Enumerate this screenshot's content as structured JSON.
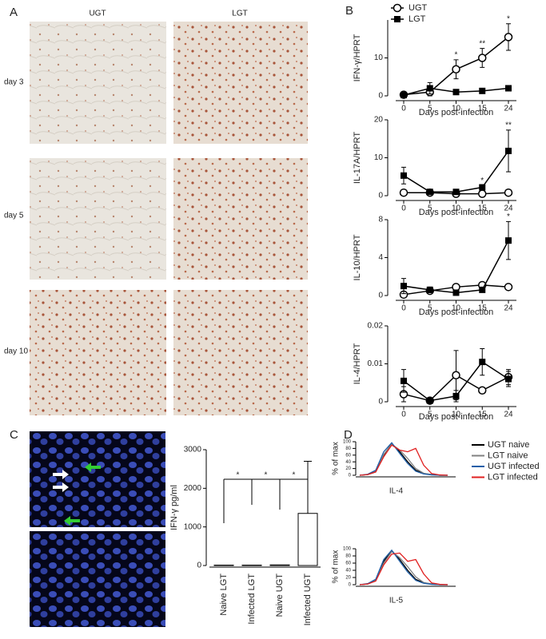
{
  "panels": {
    "a": "A",
    "b": "B",
    "c": "C",
    "d": "D"
  },
  "photo_grid": {
    "columns": [
      "UGT",
      "LGT"
    ],
    "rows": [
      "day 3",
      "day 5",
      "day 10"
    ]
  },
  "chart_data": [
    {
      "type": "line",
      "ylabel": "IFN-γ/HPRT",
      "xlabel": "Days post-infection",
      "categories": [
        "0",
        "5",
        "10",
        "15",
        "24"
      ],
      "ylim": [
        0,
        20
      ],
      "yticks": [
        0,
        10
      ],
      "legend": "upper left",
      "series": [
        {
          "name": "UGT",
          "color": "#000000",
          "marker": "circle",
          "values": [
            0.3,
            1,
            7,
            10,
            15.5
          ],
          "errors": [
            0.3,
            1,
            2.5,
            2.5,
            3.5
          ]
        },
        {
          "name": "LGT",
          "color": "#000000",
          "marker": "square",
          "values": [
            0.2,
            2,
            1,
            1.3,
            2
          ],
          "errors": [
            0.2,
            1.5,
            0.4,
            0.5,
            0.5
          ]
        }
      ],
      "annotations": [
        {
          "label": "*",
          "category": "10"
        },
        {
          "label": "**",
          "category": "15"
        },
        {
          "label": "*",
          "category": "24"
        }
      ]
    },
    {
      "type": "line",
      "ylabel": "IL-17A/HPRT",
      "xlabel": "Days post-infection",
      "categories": [
        "0",
        "5",
        "10",
        "15",
        "24"
      ],
      "ylim": [
        0,
        20
      ],
      "yticks": [
        0,
        10,
        20
      ],
      "series": [
        {
          "color": "#000000",
          "marker": "circle",
          "values": [
            0.8,
            0.8,
            0.5,
            0.5,
            0.8
          ],
          "errors": [
            0.3,
            0.3,
            0.2,
            0.2,
            0.3
          ]
        },
        {
          "color": "#000000",
          "marker": "square",
          "values": [
            5.3,
            1,
            1,
            2.2,
            11.8
          ],
          "errors": [
            2.2,
            0.5,
            0.4,
            0.5,
            5.5
          ]
        }
      ],
      "annotations": [
        {
          "label": "*",
          "category": "15"
        },
        {
          "label": "**",
          "category": "24"
        }
      ]
    },
    {
      "type": "line",
      "ylabel": "IL-10/HPRT",
      "xlabel": "Days post-infection",
      "categories": [
        "0",
        "5",
        "10",
        "15",
        "24"
      ],
      "ylim": [
        0,
        8
      ],
      "yticks": [
        0,
        4,
        8
      ],
      "series": [
        {
          "color": "#000000",
          "marker": "circle",
          "values": [
            0.1,
            0.5,
            0.9,
            1.1,
            0.9
          ],
          "errors": [
            0.1,
            0.2,
            0.2,
            0.2,
            0.2
          ]
        },
        {
          "color": "#000000",
          "marker": "square",
          "values": [
            1,
            0.6,
            0.3,
            0.6,
            5.8
          ],
          "errors": [
            0.8,
            0.3,
            0.2,
            0.2,
            2
          ]
        }
      ],
      "annotations": [
        {
          "label": "*",
          "category": "24"
        }
      ]
    },
    {
      "type": "line",
      "ylabel": "IL-4/HPRT",
      "xlabel": "Days post-infection",
      "categories": [
        "0",
        "5",
        "10",
        "15",
        "24"
      ],
      "ylim": [
        0,
        0.02
      ],
      "yticks": [
        0,
        0.01,
        0.02
      ],
      "series": [
        {
          "color": "#000000",
          "marker": "circle",
          "values": [
            0.002,
            0.0003,
            0.007,
            0.003,
            0.0065
          ],
          "errors": [
            0.002,
            0.0003,
            0.0065,
            0.0003,
            0.002
          ]
        },
        {
          "color": "#000000",
          "marker": "square",
          "values": [
            0.0055,
            0.0003,
            0.0015,
            0.0105,
            0.006
          ],
          "errors": [
            0.003,
            0.0003,
            0.0015,
            0.0035,
            0.002
          ]
        }
      ],
      "annotations": []
    },
    {
      "type": "bar",
      "ylabel": "IFN-γ pg/ml",
      "categories": [
        "Naive LGT",
        "Infected LGT",
        "Naive UGT",
        "Infected UGT"
      ],
      "values": [
        10,
        10,
        15,
        1350
      ],
      "errors": [
        0,
        0,
        0,
        1350
      ],
      "color": "#ffffff",
      "ylim": [
        0,
        3000
      ],
      "yticks": [
        0,
        1000,
        2000,
        3000
      ],
      "annotations": [
        "*",
        "*",
        "*"
      ]
    },
    {
      "type": "histogram_overlay",
      "ylabel": "% of max",
      "xlabel": "IL-4",
      "ylim": [
        0,
        100
      ],
      "yticks": [
        0,
        20,
        40,
        60,
        80,
        100
      ],
      "legend": "right",
      "series": [
        {
          "name": "UGT naive",
          "color": "#000000",
          "values": [
            0,
            2,
            10,
            60,
            95,
            70,
            40,
            15,
            5,
            2,
            0,
            0
          ]
        },
        {
          "name": "LGT naive",
          "color": "#808080",
          "values": [
            0,
            2,
            12,
            62,
            93,
            75,
            50,
            20,
            6,
            2,
            0,
            0
          ]
        },
        {
          "name": "UGT infected",
          "color": "#1f5fa8",
          "values": [
            0,
            3,
            15,
            70,
            97,
            65,
            35,
            12,
            4,
            1,
            0,
            0
          ]
        },
        {
          "name": "LGT infected",
          "color": "#e02020",
          "values": [
            0,
            2,
            10,
            55,
            90,
            75,
            70,
            80,
            30,
            5,
            1,
            0
          ]
        }
      ]
    },
    {
      "type": "histogram_overlay",
      "ylabel": "% of max",
      "xlabel": "IL-5",
      "ylim": [
        0,
        100
      ],
      "yticks": [
        0,
        20,
        40,
        60,
        80,
        100
      ],
      "series": [
        {
          "color": "#000000",
          "values": [
            0,
            2,
            12,
            65,
            95,
            70,
            40,
            15,
            5,
            2,
            0,
            0
          ]
        },
        {
          "color": "#808080",
          "values": [
            0,
            2,
            12,
            60,
            92,
            75,
            50,
            22,
            6,
            2,
            0,
            0
          ]
        },
        {
          "color": "#1f5fa8",
          "values": [
            0,
            3,
            15,
            70,
            96,
            65,
            35,
            12,
            4,
            1,
            0,
            0
          ]
        },
        {
          "color": "#e02020",
          "values": [
            0,
            2,
            10,
            55,
            85,
            88,
            65,
            70,
            30,
            5,
            1,
            0
          ]
        }
      ]
    }
  ]
}
